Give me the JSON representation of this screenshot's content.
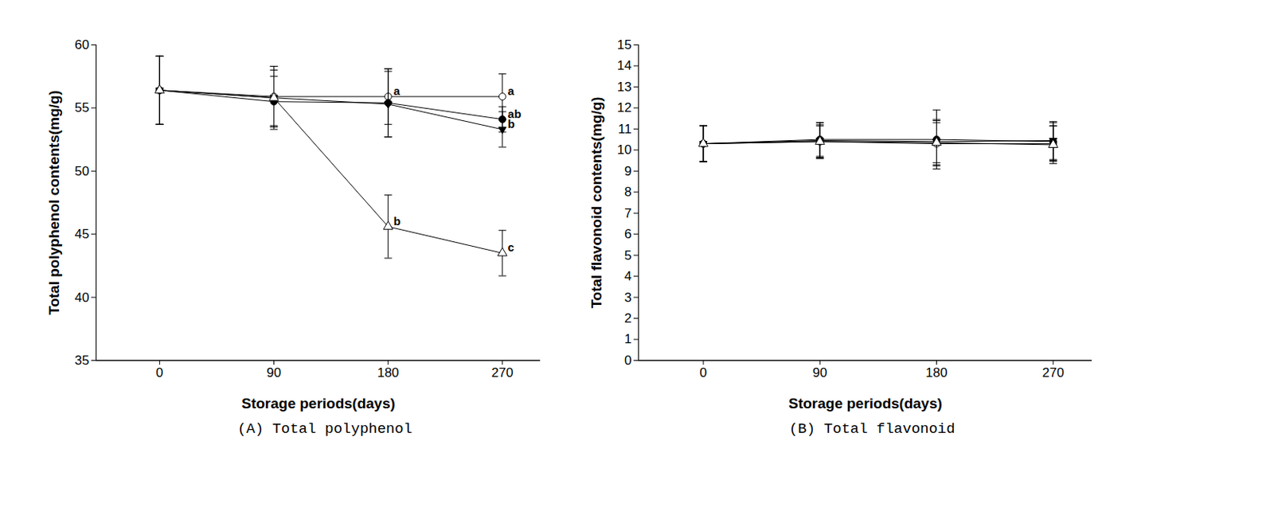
{
  "chart_data": [
    {
      "type": "line",
      "caption": "(A) Total polyphenol",
      "x_label": "Storage periods(days)",
      "y_label": "Total polyphenol contents(mg/g)",
      "x": [
        0,
        90,
        180,
        270
      ],
      "xlim": [
        -50,
        300
      ],
      "xticks": [
        0,
        90,
        180,
        270
      ],
      "ylim": [
        35,
        60
      ],
      "yticks": [
        35,
        40,
        45,
        50,
        55,
        60
      ],
      "grid": false,
      "series": [
        {
          "color": "#000000",
          "marker": "circle-open",
          "values": [
            56.4,
            55.9,
            55.9,
            55.9
          ],
          "errors": [
            2.7,
            2.4,
            2.2,
            1.8
          ],
          "annotations": [
            null,
            null,
            "a",
            "a"
          ]
        },
        {
          "color": "#000000",
          "marker": "circle",
          "values": [
            56.4,
            55.5,
            55.4,
            54.1
          ],
          "errors": [
            2.7,
            2.0,
            2.7,
            1.0
          ],
          "annotations": [
            null,
            null,
            null,
            "ab"
          ]
        },
        {
          "color": "#000000",
          "marker": "triangle-down",
          "values": [
            56.4,
            55.8,
            55.3,
            53.3
          ],
          "errors": [
            2.7,
            2.5,
            2.6,
            1.4
          ],
          "annotations": [
            null,
            null,
            null,
            "b"
          ]
        },
        {
          "color": "#000000",
          "marker": "triangle-open",
          "values": [
            56.4,
            55.8,
            45.6,
            43.5
          ],
          "errors": [
            2.7,
            2.2,
            2.5,
            1.8
          ],
          "annotations": [
            null,
            null,
            "b",
            "c"
          ]
        }
      ]
    },
    {
      "type": "line",
      "caption": "(B) Total flavonoid",
      "x_label": "Storage periods(days)",
      "y_label": "Total flavonoid contents(mg/g)",
      "x": [
        0,
        90,
        180,
        270
      ],
      "xlim": [
        -50,
        300
      ],
      "xticks": [
        0,
        90,
        180,
        270
      ],
      "ylim": [
        0,
        15
      ],
      "yticks": [
        0,
        1,
        2,
        3,
        4,
        5,
        6,
        7,
        8,
        9,
        10,
        11,
        12,
        13,
        14,
        15
      ],
      "grid": false,
      "series": [
        {
          "color": "#000000",
          "marker": "circle-open",
          "values": [
            10.3,
            10.4,
            10.3,
            10.3
          ],
          "errors": [
            0.85,
            0.8,
            1.0,
            0.85
          ]
        },
        {
          "color": "#000000",
          "marker": "circle",
          "values": [
            10.3,
            10.5,
            10.5,
            10.4
          ],
          "errors": [
            0.85,
            0.8,
            1.4,
            0.9
          ]
        },
        {
          "color": "#000000",
          "marker": "triangle-down",
          "values": [
            10.3,
            10.45,
            10.4,
            10.45
          ],
          "errors": [
            0.85,
            0.85,
            1.0,
            0.9
          ]
        },
        {
          "color": "#000000",
          "marker": "triangle-open",
          "values": [
            10.3,
            10.4,
            10.35,
            10.25
          ],
          "errors": [
            0.85,
            0.75,
            1.1,
            0.9
          ]
        }
      ]
    }
  ]
}
